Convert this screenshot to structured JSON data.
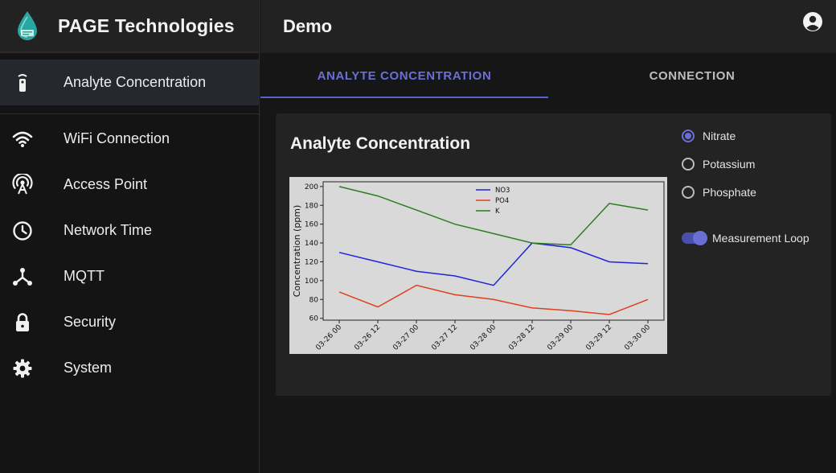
{
  "brand": {
    "title": "PAGE Technologies",
    "logo_icon": "water-drop-logo"
  },
  "topbar": {
    "title": "Demo",
    "account_icon": "account-circle-icon"
  },
  "sidebar": {
    "items": [
      {
        "label": "Analyte Concentration",
        "icon": "remote-sensor-icon",
        "active": true
      },
      {
        "label": "WiFi Connection",
        "icon": "wifi-icon"
      },
      {
        "label": "Access Point",
        "icon": "access-point-icon"
      },
      {
        "label": "Network Time",
        "icon": "clock-icon"
      },
      {
        "label": "MQTT",
        "icon": "hub-icon"
      },
      {
        "label": "Security",
        "icon": "lock-icon"
      },
      {
        "label": "System",
        "icon": "gear-icon"
      }
    ]
  },
  "tabs": [
    {
      "label": "ANALYTE CONCENTRATION",
      "active": true
    },
    {
      "label": "CONNECTION",
      "active": false
    }
  ],
  "card": {
    "title": "Analyte Concentration"
  },
  "options": {
    "radios": [
      {
        "label": "Nitrate",
        "checked": true
      },
      {
        "label": "Potassium",
        "checked": false
      },
      {
        "label": "Phosphate",
        "checked": false
      }
    ],
    "toggle": {
      "label": "Measurement Loop",
      "on": true
    }
  },
  "colors": {
    "accent": "#6a6fd6",
    "no3": "#2222dd",
    "po4": "#e0401a",
    "k": "#2e7d22"
  },
  "chart_data": {
    "type": "line",
    "x": [
      "03-26 00",
      "03-26 12",
      "03-27 00",
      "03-27 12",
      "03-28 00",
      "03-28 12",
      "03-29 00",
      "03-29 12",
      "03-30 00"
    ],
    "ylabel": "Concentration (ppm)",
    "ylim": [
      58,
      205
    ],
    "yticks": [
      60,
      80,
      100,
      120,
      140,
      160,
      180,
      200
    ],
    "legend": "top-center",
    "grid": false,
    "series": [
      {
        "name": "NO3",
        "color": "#2222dd",
        "values": [
          130,
          120,
          110,
          105,
          95,
          140,
          135,
          120,
          118
        ]
      },
      {
        "name": "PO4",
        "color": "#e0401a",
        "values": [
          88,
          72,
          95,
          85,
          80,
          71,
          68,
          64,
          80
        ]
      },
      {
        "name": "K",
        "color": "#2e7d22",
        "values": [
          200,
          190,
          175,
          160,
          150,
          140,
          138,
          182,
          175
        ]
      }
    ]
  }
}
